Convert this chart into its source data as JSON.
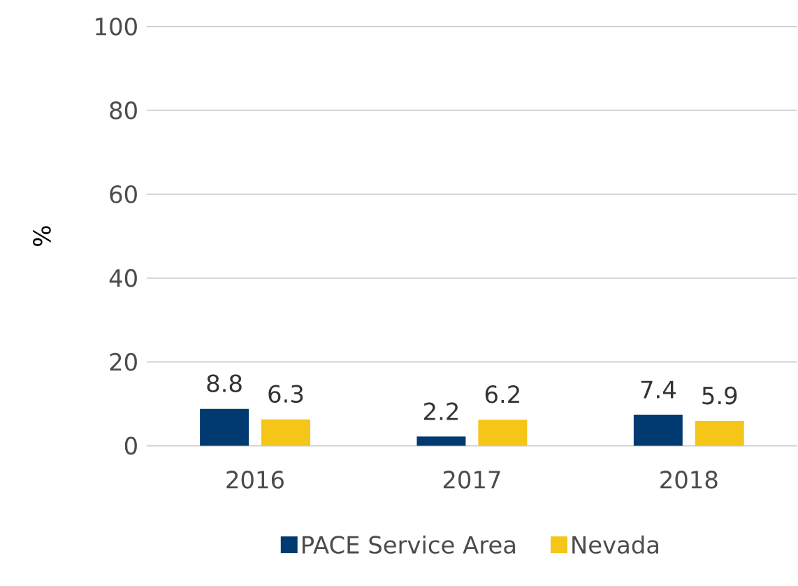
{
  "chart_data": {
    "type": "bar",
    "ylabel": "%",
    "categories": [
      "2016",
      "2017",
      "2018"
    ],
    "series": [
      {
        "name": "PACE Service Area",
        "color": "#003a70",
        "values": [
          8.8,
          2.2,
          7.4
        ]
      },
      {
        "name": "Nevada",
        "color": "#f5c518",
        "values": [
          6.3,
          6.2,
          5.9
        ]
      }
    ],
    "ylim": [
      0,
      100
    ],
    "yticks": [
      0,
      20,
      40,
      60,
      80,
      100
    ],
    "grid": "y",
    "legend": "bottom",
    "data_labels": true
  }
}
